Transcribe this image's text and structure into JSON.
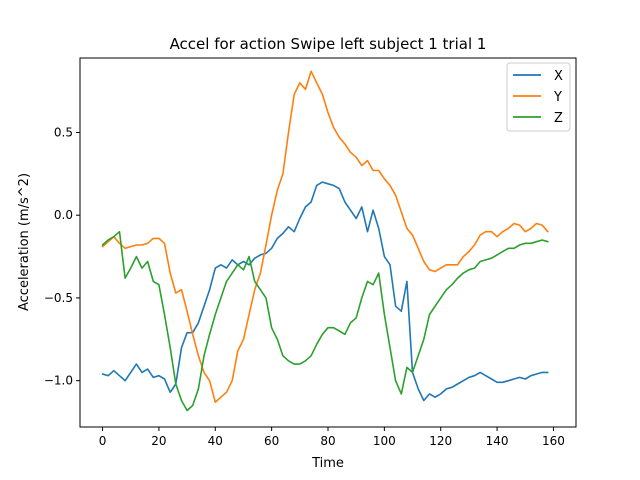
{
  "chart_data": {
    "type": "line",
    "title": "Accel for action Swipe left subject 1 trial 1",
    "xlabel": "Time",
    "ylabel": "Acceleration (m/s^2)",
    "xlim": [
      -8,
      168
    ],
    "ylim": [
      -1.28,
      0.95
    ],
    "xticks": [
      0,
      20,
      40,
      60,
      80,
      100,
      120,
      140,
      160
    ],
    "yticks": [
      -1.0,
      -0.5,
      0.0,
      0.5
    ],
    "ytick_labels": [
      "−1.0",
      "−0.5",
      "0.0",
      "0.5"
    ],
    "grid": false,
    "legend": "top-right",
    "series": [
      {
        "name": "X",
        "color": "#1f77b4",
        "points": [
          [
            0,
            -0.96
          ],
          [
            2,
            -0.97
          ],
          [
            4,
            -0.94
          ],
          [
            6,
            -0.97
          ],
          [
            8,
            -1.0
          ],
          [
            10,
            -0.95
          ],
          [
            12,
            -0.9
          ],
          [
            14,
            -0.95
          ],
          [
            16,
            -0.93
          ],
          [
            18,
            -0.98
          ],
          [
            20,
            -0.97
          ],
          [
            22,
            -0.99
          ],
          [
            24,
            -1.07
          ],
          [
            26,
            -1.02
          ],
          [
            28,
            -0.8
          ],
          [
            30,
            -0.71
          ],
          [
            32,
            -0.71
          ],
          [
            34,
            -0.65
          ],
          [
            36,
            -0.55
          ],
          [
            38,
            -0.45
          ],
          [
            40,
            -0.32
          ],
          [
            42,
            -0.3
          ],
          [
            44,
            -0.32
          ],
          [
            46,
            -0.27
          ],
          [
            48,
            -0.3
          ],
          [
            50,
            -0.28
          ],
          [
            52,
            -0.3
          ],
          [
            54,
            -0.26
          ],
          [
            56,
            -0.24
          ],
          [
            58,
            -0.23
          ],
          [
            60,
            -0.2
          ],
          [
            62,
            -0.14
          ],
          [
            64,
            -0.11
          ],
          [
            66,
            -0.07
          ],
          [
            68,
            -0.1
          ],
          [
            70,
            -0.02
          ],
          [
            72,
            0.05
          ],
          [
            74,
            0.08
          ],
          [
            76,
            0.18
          ],
          [
            78,
            0.2
          ],
          [
            80,
            0.19
          ],
          [
            82,
            0.18
          ],
          [
            84,
            0.16
          ],
          [
            86,
            0.08
          ],
          [
            88,
            0.03
          ],
          [
            90,
            -0.02
          ],
          [
            92,
            0.05
          ],
          [
            94,
            -0.1
          ],
          [
            96,
            0.03
          ],
          [
            98,
            -0.08
          ],
          [
            100,
            -0.25
          ],
          [
            102,
            -0.3
          ],
          [
            104,
            -0.55
          ],
          [
            106,
            -0.58
          ],
          [
            108,
            -0.4
          ],
          [
            110,
            -0.95
          ],
          [
            112,
            -1.05
          ],
          [
            114,
            -1.12
          ],
          [
            116,
            -1.08
          ],
          [
            118,
            -1.1
          ],
          [
            120,
            -1.08
          ],
          [
            122,
            -1.05
          ],
          [
            124,
            -1.04
          ],
          [
            126,
            -1.02
          ],
          [
            128,
            -1.0
          ],
          [
            130,
            -0.98
          ],
          [
            132,
            -0.97
          ],
          [
            134,
            -0.95
          ],
          [
            136,
            -0.97
          ],
          [
            138,
            -0.99
          ],
          [
            140,
            -1.01
          ],
          [
            142,
            -1.01
          ],
          [
            144,
            -1.0
          ],
          [
            146,
            -0.99
          ],
          [
            148,
            -0.98
          ],
          [
            150,
            -0.99
          ],
          [
            152,
            -0.97
          ],
          [
            154,
            -0.96
          ],
          [
            156,
            -0.95
          ],
          [
            158,
            -0.95
          ]
        ]
      },
      {
        "name": "Y",
        "color": "#ff7f0e",
        "points": [
          [
            0,
            -0.19
          ],
          [
            2,
            -0.16
          ],
          [
            4,
            -0.13
          ],
          [
            6,
            -0.17
          ],
          [
            8,
            -0.2
          ],
          [
            10,
            -0.19
          ],
          [
            12,
            -0.18
          ],
          [
            14,
            -0.18
          ],
          [
            16,
            -0.17
          ],
          [
            18,
            -0.14
          ],
          [
            20,
            -0.14
          ],
          [
            22,
            -0.17
          ],
          [
            24,
            -0.35
          ],
          [
            26,
            -0.47
          ],
          [
            28,
            -0.45
          ],
          [
            30,
            -0.58
          ],
          [
            32,
            -0.72
          ],
          [
            34,
            -0.85
          ],
          [
            36,
            -0.95
          ],
          [
            38,
            -1.0
          ],
          [
            40,
            -1.13
          ],
          [
            42,
            -1.1
          ],
          [
            44,
            -1.07
          ],
          [
            46,
            -1.0
          ],
          [
            48,
            -0.82
          ],
          [
            50,
            -0.75
          ],
          [
            52,
            -0.6
          ],
          [
            54,
            -0.45
          ],
          [
            56,
            -0.35
          ],
          [
            58,
            -0.18
          ],
          [
            60,
            0.0
          ],
          [
            62,
            0.15
          ],
          [
            64,
            0.25
          ],
          [
            66,
            0.5
          ],
          [
            68,
            0.73
          ],
          [
            70,
            0.8
          ],
          [
            72,
            0.76
          ],
          [
            74,
            0.87
          ],
          [
            76,
            0.8
          ],
          [
            78,
            0.73
          ],
          [
            80,
            0.62
          ],
          [
            82,
            0.53
          ],
          [
            84,
            0.47
          ],
          [
            86,
            0.43
          ],
          [
            88,
            0.38
          ],
          [
            90,
            0.35
          ],
          [
            92,
            0.3
          ],
          [
            94,
            0.33
          ],
          [
            96,
            0.27
          ],
          [
            98,
            0.27
          ],
          [
            100,
            0.22
          ],
          [
            102,
            0.18
          ],
          [
            104,
            0.12
          ],
          [
            106,
            0.02
          ],
          [
            108,
            -0.08
          ],
          [
            110,
            -0.12
          ],
          [
            112,
            -0.2
          ],
          [
            114,
            -0.28
          ],
          [
            116,
            -0.33
          ],
          [
            118,
            -0.34
          ],
          [
            120,
            -0.32
          ],
          [
            122,
            -0.3
          ],
          [
            124,
            -0.3
          ],
          [
            126,
            -0.3
          ],
          [
            128,
            -0.25
          ],
          [
            130,
            -0.22
          ],
          [
            132,
            -0.18
          ],
          [
            134,
            -0.12
          ],
          [
            136,
            -0.1
          ],
          [
            138,
            -0.1
          ],
          [
            140,
            -0.13
          ],
          [
            142,
            -0.1
          ],
          [
            144,
            -0.08
          ],
          [
            146,
            -0.05
          ],
          [
            148,
            -0.06
          ],
          [
            150,
            -0.1
          ],
          [
            152,
            -0.08
          ],
          [
            154,
            -0.05
          ],
          [
            156,
            -0.06
          ],
          [
            158,
            -0.1
          ]
        ]
      },
      {
        "name": "Z",
        "color": "#2ca02c",
        "points": [
          [
            0,
            -0.18
          ],
          [
            2,
            -0.15
          ],
          [
            4,
            -0.13
          ],
          [
            6,
            -0.1
          ],
          [
            8,
            -0.38
          ],
          [
            10,
            -0.32
          ],
          [
            12,
            -0.25
          ],
          [
            14,
            -0.32
          ],
          [
            16,
            -0.28
          ],
          [
            18,
            -0.4
          ],
          [
            20,
            -0.42
          ],
          [
            22,
            -0.6
          ],
          [
            24,
            -0.8
          ],
          [
            26,
            -1.02
          ],
          [
            28,
            -1.12
          ],
          [
            30,
            -1.18
          ],
          [
            32,
            -1.15
          ],
          [
            34,
            -1.05
          ],
          [
            36,
            -0.85
          ],
          [
            38,
            -0.72
          ],
          [
            40,
            -0.6
          ],
          [
            42,
            -0.5
          ],
          [
            44,
            -0.4
          ],
          [
            46,
            -0.35
          ],
          [
            48,
            -0.3
          ],
          [
            50,
            -0.33
          ],
          [
            52,
            -0.25
          ],
          [
            54,
            -0.4
          ],
          [
            56,
            -0.45
          ],
          [
            58,
            -0.5
          ],
          [
            60,
            -0.68
          ],
          [
            62,
            -0.75
          ],
          [
            64,
            -0.85
          ],
          [
            66,
            -0.88
          ],
          [
            68,
            -0.9
          ],
          [
            70,
            -0.9
          ],
          [
            72,
            -0.88
          ],
          [
            74,
            -0.85
          ],
          [
            76,
            -0.78
          ],
          [
            78,
            -0.72
          ],
          [
            80,
            -0.68
          ],
          [
            82,
            -0.68
          ],
          [
            84,
            -0.7
          ],
          [
            86,
            -0.72
          ],
          [
            88,
            -0.65
          ],
          [
            90,
            -0.62
          ],
          [
            92,
            -0.5
          ],
          [
            94,
            -0.4
          ],
          [
            96,
            -0.42
          ],
          [
            98,
            -0.35
          ],
          [
            100,
            -0.6
          ],
          [
            102,
            -0.8
          ],
          [
            104,
            -1.0
          ],
          [
            106,
            -1.08
          ],
          [
            108,
            -0.92
          ],
          [
            110,
            -0.95
          ],
          [
            112,
            -0.85
          ],
          [
            114,
            -0.75
          ],
          [
            116,
            -0.6
          ],
          [
            118,
            -0.55
          ],
          [
            120,
            -0.5
          ],
          [
            122,
            -0.45
          ],
          [
            124,
            -0.42
          ],
          [
            126,
            -0.38
          ],
          [
            128,
            -0.35
          ],
          [
            130,
            -0.33
          ],
          [
            132,
            -0.32
          ],
          [
            134,
            -0.28
          ],
          [
            136,
            -0.27
          ],
          [
            138,
            -0.26
          ],
          [
            140,
            -0.24
          ],
          [
            142,
            -0.22
          ],
          [
            144,
            -0.2
          ],
          [
            146,
            -0.2
          ],
          [
            148,
            -0.18
          ],
          [
            150,
            -0.17
          ],
          [
            152,
            -0.17
          ],
          [
            154,
            -0.16
          ],
          [
            156,
            -0.15
          ],
          [
            158,
            -0.16
          ]
        ]
      }
    ]
  }
}
